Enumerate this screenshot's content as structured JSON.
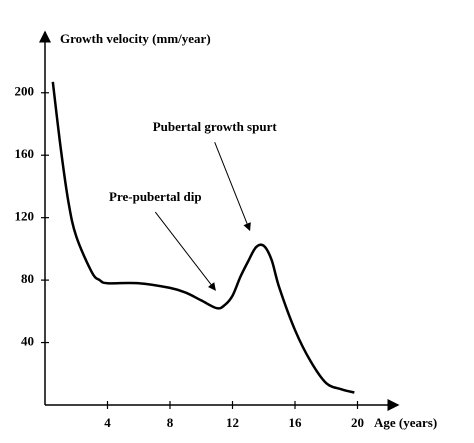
{
  "chart_data": {
    "type": "line",
    "y_label": "Growth velocity (mm/year)",
    "x_label": "Age (years)",
    "x": [
      0.5,
      1,
      1.5,
      2,
      3,
      3.5,
      4,
      6,
      8,
      9,
      10,
      11,
      11.5,
      12,
      12.5,
      13,
      13.5,
      14,
      14.5,
      15,
      16,
      17,
      18,
      19,
      19.8
    ],
    "values": [
      207,
      165,
      130,
      108,
      85,
      80,
      78,
      78,
      75,
      72,
      67,
      62,
      64,
      70,
      82,
      92,
      101,
      102,
      93,
      75,
      48,
      28,
      14,
      10,
      8
    ],
    "color": "#000000",
    "xlim": [
      0,
      22.4
    ],
    "ylim": [
      0,
      237
    ],
    "xticks": [
      4,
      8,
      12,
      16,
      20
    ],
    "yticks": [
      40,
      80,
      120,
      160,
      200
    ],
    "annotations": [
      {
        "text": "Pre-pubertal dip",
        "x": 10.9,
        "y": 73.6
      },
      {
        "text": "Pubertal growth spurt",
        "x": 13.1,
        "y": 112
      }
    ]
  }
}
